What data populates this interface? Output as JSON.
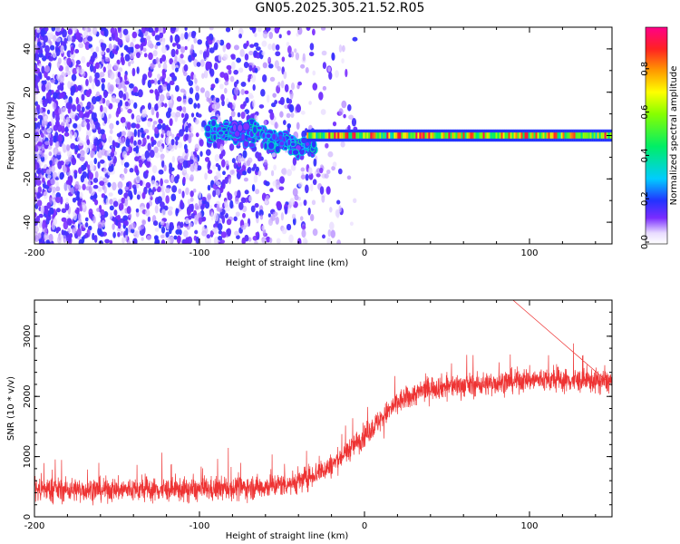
{
  "title": "GN05.2025.305.21.52.R05",
  "colors": {
    "background": "#ffffff",
    "axis": "#000000",
    "snr_line": "#ee3333",
    "spectral_low": "#7a2cff",
    "spectral_high": "#ff1144"
  },
  "chart_data": [
    {
      "type": "heatmap",
      "name": "spectrogram",
      "xlabel": "Height of straight line (km)",
      "ylabel": "Frequency (Hz)",
      "xlim": [
        -200,
        150
      ],
      "ylim": [
        -50,
        50
      ],
      "xticks": [
        -200,
        -100,
        0,
        100
      ],
      "yticks": [
        -40,
        -20,
        0,
        20,
        40
      ],
      "colorbar": {
        "label": "Normalized spectral amplitude",
        "range": [
          0,
          1
        ],
        "ticks": [
          "0.0",
          "0.2",
          "0.4",
          "0.6",
          "0.8"
        ]
      },
      "regions": [
        {
          "desc": "diffuse low-amplitude scatter",
          "x": [
            -200,
            -30
          ],
          "freq": [
            -50,
            50
          ],
          "amplitude": [
            0.05,
            0.2
          ]
        },
        {
          "desc": "clustered blobs near zero",
          "x": [
            -95,
            -30
          ],
          "freq": [
            -10,
            8
          ],
          "amplitude": [
            0.2,
            0.4
          ]
        },
        {
          "desc": "coherent zero-frequency band",
          "x": [
            -35,
            150
          ],
          "freq": [
            -3,
            3
          ],
          "amplitude": [
            0.35,
            0.95
          ]
        }
      ]
    },
    {
      "type": "line",
      "name": "snr",
      "xlabel": "Height of straight line (km)",
      "ylabel": "SNR (10 * v/v)",
      "xlim": [
        -200,
        150
      ],
      "ylim": [
        0,
        3600
      ],
      "xticks": [
        -200,
        -100,
        0,
        100
      ],
      "yticks": [
        0,
        1000,
        2000,
        3000
      ],
      "trend": {
        "x": [
          -200,
          -100,
          -60,
          -40,
          -20,
          0,
          20,
          40,
          70,
          100,
          150
        ],
        "y": [
          450,
          450,
          500,
          580,
          850,
          1350,
          1900,
          2150,
          2200,
          2280,
          2250
        ]
      },
      "noise_band": 350,
      "peak": {
        "x": 90,
        "y": 3600
      }
    }
  ]
}
